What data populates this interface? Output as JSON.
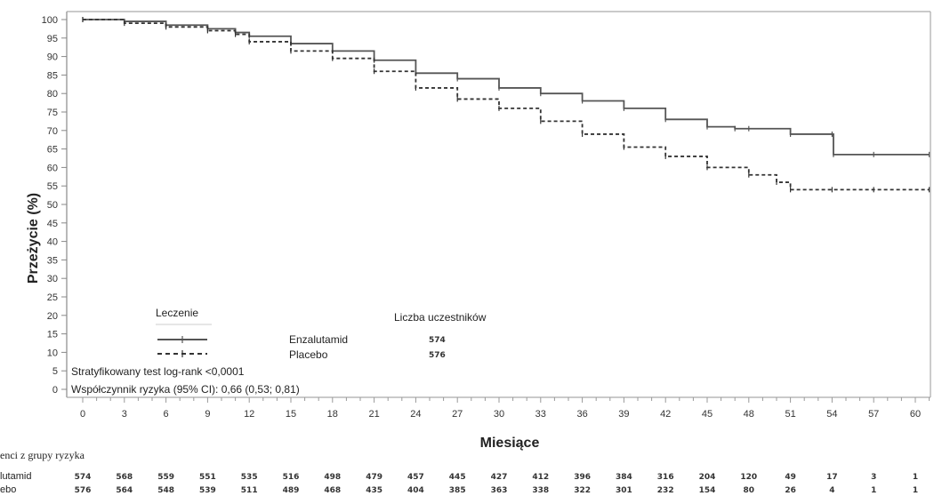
{
  "chart_data": {
    "type": "line",
    "title": "",
    "xlabel": "Miesiące",
    "ylabel": "Przeżycie (%)",
    "xlim": [
      0,
      61
    ],
    "ylim": [
      0,
      100
    ],
    "xticks": [
      "0",
      "3",
      "6",
      "9",
      "12",
      "15",
      "18",
      "21",
      "24",
      "27",
      "30",
      "33",
      "36",
      "39",
      "42",
      "45",
      "48",
      "51",
      "54",
      "57",
      "60"
    ],
    "yticks": [
      "0",
      "5",
      "10",
      "15",
      "20",
      "25",
      "30",
      "35",
      "40",
      "45",
      "50",
      "55",
      "60",
      "65",
      "70",
      "75",
      "80",
      "85",
      "90",
      "95",
      "100"
    ],
    "series": [
      {
        "name": "Enzalutamid",
        "style": "solid",
        "color": "#555555",
        "x": [
          0,
          3,
          6,
          9,
          11,
          12,
          15,
          18,
          21,
          24,
          27,
          30,
          33,
          36,
          39,
          42,
          45,
          47,
          48,
          51,
          54,
          54.1,
          57,
          61
        ],
        "y": [
          100,
          99.5,
          98.5,
          97.5,
          96.5,
          95.5,
          93.5,
          91.5,
          89,
          85.5,
          84,
          81.5,
          80,
          78,
          76,
          73,
          71,
          70.5,
          70.5,
          69,
          69,
          63.5,
          63.5,
          63.5
        ]
      },
      {
        "name": "Placebo",
        "style": "dashed",
        "color": "#333333",
        "x": [
          0,
          3,
          6,
          9,
          11,
          12,
          15,
          18,
          21,
          24,
          27,
          30,
          33,
          36,
          39,
          42,
          45,
          48,
          50,
          51,
          54,
          57,
          61
        ],
        "y": [
          100,
          99,
          98,
          97,
          96,
          94,
          91.5,
          89.5,
          86,
          81.5,
          78.5,
          76,
          72.5,
          69,
          65.5,
          63,
          60,
          58,
          56,
          54,
          54,
          54,
          54
        ]
      }
    ],
    "legend": {
      "title": "Leczenie",
      "count_header": "Liczba uczestników",
      "entries": [
        {
          "label": "Enzalutamid",
          "count": "574"
        },
        {
          "label": "Placebo",
          "count": "576"
        }
      ]
    },
    "annotations": [
      "Stratyfikowany test log-rank <0,0001",
      "Współczynnik ryzyka (95% CI): 0,66 (0,53; 0,81)"
    ],
    "risk_table": {
      "title": "enci z grupy ryzyka",
      "rows": [
        {
          "name": "lutamid",
          "values": [
            "574",
            "568",
            "559",
            "551",
            "535",
            "516",
            "498",
            "479",
            "457",
            "445",
            "427",
            "412",
            "396",
            "384",
            "316",
            "204",
            "120",
            "49",
            "17",
            "3",
            "1"
          ]
        },
        {
          "name": "ebo",
          "values": [
            "576",
            "564",
            "548",
            "539",
            "511",
            "489",
            "468",
            "435",
            "404",
            "385",
            "363",
            "338",
            "322",
            "301",
            "232",
            "154",
            "80",
            "26",
            "4",
            "1",
            "1"
          ]
        }
      ]
    }
  }
}
